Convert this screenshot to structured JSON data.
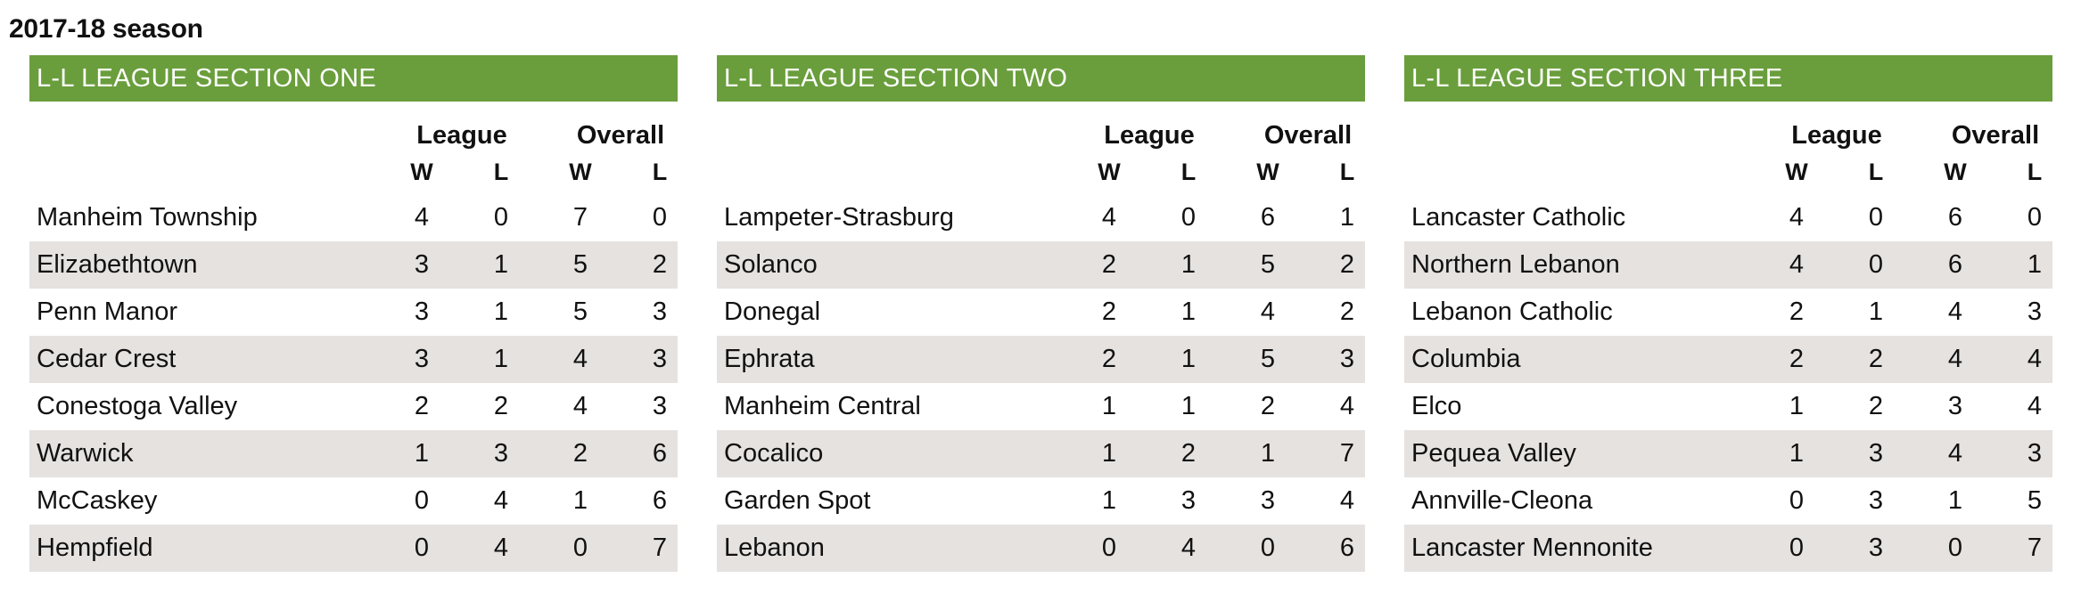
{
  "season_title": "2017-18 season",
  "column_headers": {
    "league": "League",
    "overall": "Overall",
    "w": "W",
    "l": "L"
  },
  "sections": [
    {
      "title": "L-L LEAGUE SECTION ONE",
      "teams": [
        {
          "name": "Manheim Township",
          "league_w": "4",
          "league_l": "0",
          "overall_w": "7",
          "overall_l": "0"
        },
        {
          "name": "Elizabethtown",
          "league_w": "3",
          "league_l": "1",
          "overall_w": "5",
          "overall_l": "2"
        },
        {
          "name": "Penn Manor",
          "league_w": "3",
          "league_l": "1",
          "overall_w": "5",
          "overall_l": "3"
        },
        {
          "name": "Cedar Crest",
          "league_w": "3",
          "league_l": "1",
          "overall_w": "4",
          "overall_l": "3"
        },
        {
          "name": "Conestoga Valley",
          "league_w": "2",
          "league_l": "2",
          "overall_w": "4",
          "overall_l": "3"
        },
        {
          "name": "Warwick",
          "league_w": "1",
          "league_l": "3",
          "overall_w": "2",
          "overall_l": "6"
        },
        {
          "name": "McCaskey",
          "league_w": "0",
          "league_l": "4",
          "overall_w": "1",
          "overall_l": "6"
        },
        {
          "name": "Hempfield",
          "league_w": "0",
          "league_l": "4",
          "overall_w": "0",
          "overall_l": "7"
        }
      ]
    },
    {
      "title": "L-L LEAGUE SECTION TWO",
      "teams": [
        {
          "name": "Lampeter-Strasburg",
          "league_w": "4",
          "league_l": "0",
          "overall_w": "6",
          "overall_l": "1"
        },
        {
          "name": "Solanco",
          "league_w": "2",
          "league_l": "1",
          "overall_w": "5",
          "overall_l": "2"
        },
        {
          "name": "Donegal",
          "league_w": "2",
          "league_l": "1",
          "overall_w": "4",
          "overall_l": "2"
        },
        {
          "name": "Ephrata",
          "league_w": "2",
          "league_l": "1",
          "overall_w": "5",
          "overall_l": "3"
        },
        {
          "name": "Manheim Central",
          "league_w": "1",
          "league_l": "1",
          "overall_w": "2",
          "overall_l": "4"
        },
        {
          "name": "Cocalico",
          "league_w": "1",
          "league_l": "2",
          "overall_w": "1",
          "overall_l": "7"
        },
        {
          "name": "Garden Spot",
          "league_w": "1",
          "league_l": "3",
          "overall_w": "3",
          "overall_l": "4"
        },
        {
          "name": "Lebanon",
          "league_w": "0",
          "league_l": "4",
          "overall_w": "0",
          "overall_l": "6"
        }
      ]
    },
    {
      "title": "L-L LEAGUE SECTION THREE",
      "teams": [
        {
          "name": "Lancaster Catholic",
          "league_w": "4",
          "league_l": "0",
          "overall_w": "6",
          "overall_l": "0"
        },
        {
          "name": "Northern Lebanon",
          "league_w": "4",
          "league_l": "0",
          "overall_w": "6",
          "overall_l": "1"
        },
        {
          "name": "Lebanon Catholic",
          "league_w": "2",
          "league_l": "1",
          "overall_w": "4",
          "overall_l": "3"
        },
        {
          "name": "Columbia",
          "league_w": "2",
          "league_l": "2",
          "overall_w": "4",
          "overall_l": "4"
        },
        {
          "name": "Elco",
          "league_w": "1",
          "league_l": "2",
          "overall_w": "3",
          "overall_l": "4"
        },
        {
          "name": "Pequea Valley",
          "league_w": "1",
          "league_l": "3",
          "overall_w": "4",
          "overall_l": "3"
        },
        {
          "name": "Annville-Cleona",
          "league_w": "0",
          "league_l": "3",
          "overall_w": "1",
          "overall_l": "5"
        },
        {
          "name": "Lancaster Mennonite",
          "league_w": "0",
          "league_l": "3",
          "overall_w": "0",
          "overall_l": "7"
        }
      ]
    }
  ]
}
